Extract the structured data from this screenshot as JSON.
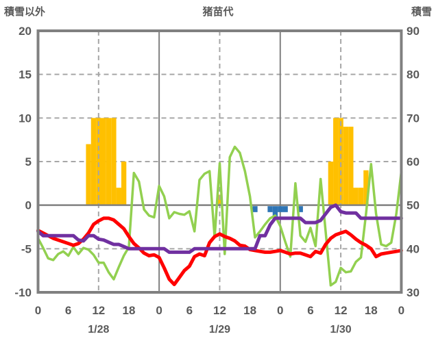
{
  "header": {
    "left_axis_title": "積雪以外",
    "chart_title": "猪苗代",
    "right_axis_title": "積雪"
  },
  "colors": {
    "background": "#ffffff",
    "frame_gray": "#808080",
    "grid_gray": "#a6a6a6",
    "zero_line_gray": "#808080",
    "text_gray": "#595959",
    "snowfall_bar_orange": "#ffc000",
    "precip_bar_blue": "#2e75b6",
    "green_line": "#92d050",
    "red_line": "#ff0000",
    "purple_line": "#7030a0"
  },
  "chart_data": {
    "type": "combo line+bar time series",
    "title": "猪苗代",
    "left_axis": {
      "title": "積雪以外",
      "min": -10,
      "max": 20,
      "ticks": [
        20,
        15,
        10,
        5,
        0,
        -5,
        -10
      ]
    },
    "right_axis": {
      "title": "積雪",
      "min": 30,
      "max": 90,
      "ticks": [
        90,
        80,
        70,
        60,
        50,
        40,
        30
      ]
    },
    "x_axis": {
      "hours_span": 72,
      "tick_hours": [
        0,
        6,
        12,
        18,
        24,
        30,
        36,
        42,
        48,
        54,
        60,
        66,
        72
      ],
      "tick_labels": [
        "0",
        "6",
        "12",
        "18",
        "0",
        "6",
        "12",
        "18",
        "0",
        "6",
        "12",
        "18",
        "0"
      ],
      "day_labels": [
        {
          "label": "1/28",
          "hour": 12
        },
        {
          "label": "1/29",
          "hour": 36
        },
        {
          "label": "1/30",
          "hour": 60
        }
      ],
      "dashed_gridline_hours": [
        12,
        36,
        60
      ],
      "solid_gridline_hours": [
        24,
        48
      ],
      "dashed_hgrid_values": [
        15,
        10,
        5,
        -5
      ],
      "grid": true,
      "legend": "none"
    },
    "series": [
      {
        "name": "snowfall-bars",
        "type": "bar",
        "axis": "left",
        "color_key": "snowfall_bar_orange",
        "points": [
          [
            10,
            7
          ],
          [
            11,
            10
          ],
          [
            12,
            10
          ],
          [
            13,
            10
          ],
          [
            14,
            10
          ],
          [
            15,
            10
          ],
          [
            16,
            2
          ],
          [
            17,
            5
          ],
          [
            36,
            1.2
          ],
          [
            58,
            5
          ],
          [
            59,
            10
          ],
          [
            60,
            10
          ],
          [
            61,
            9
          ],
          [
            62,
            9
          ],
          [
            63,
            2
          ],
          [
            64,
            2
          ],
          [
            65,
            4
          ]
        ]
      },
      {
        "name": "precip-marks",
        "type": "bar-down-from-zero",
        "axis": "left",
        "color_key": "precip_bar_blue",
        "points": [
          [
            43,
            0.8
          ],
          [
            46,
            0.8
          ],
          [
            47,
            1.7
          ],
          [
            48,
            0.8
          ],
          [
            49,
            0.8
          ],
          [
            52,
            0.8
          ]
        ]
      },
      {
        "name": "green-line",
        "type": "line",
        "axis": "left",
        "color_key": "green_line",
        "x_step_hours": 1,
        "values": [
          -3.8,
          -4.9,
          -6.1,
          -6.3,
          -5.6,
          -5.3,
          -5.8,
          -4.8,
          -5.6,
          -4.9,
          -5.1,
          -5.7,
          -6.6,
          -6.6,
          -7.7,
          -8.5,
          -7.1,
          -5.8,
          -4.8,
          3.7,
          2.7,
          -0.5,
          -1.2,
          -1.4,
          2.2,
          1.0,
          -1.5,
          -0.8,
          -1.0,
          -1.1,
          -0.7,
          -3.0,
          2.9,
          3.6,
          3.9,
          -3.7,
          4.8,
          -5.6,
          5.5,
          6.7,
          6.0,
          3.9,
          1.0,
          -3.7,
          -3.0,
          -2.2,
          -1.5,
          -1.2,
          -2.4,
          -4.2,
          -5.9,
          2.5,
          -3.5,
          -4.2,
          -2.6,
          -4.7,
          3.0,
          -3.0,
          -9.2,
          -8.8,
          -7.2,
          -7.7,
          -7.6,
          -6.5,
          -6.0,
          -1.0,
          4.7,
          -1.0,
          -4.5,
          -4.7,
          -4.3,
          -1.0,
          3.8
        ]
      },
      {
        "name": "red-temperature-line",
        "type": "line",
        "axis": "left",
        "color_key": "red_line",
        "x_step_hours": 1,
        "values": [
          -2.9,
          -3.2,
          -3.5,
          -3.8,
          -4.0,
          -4.2,
          -4.4,
          -4.6,
          -4.4,
          -3.9,
          -3.2,
          -2.2,
          -1.8,
          -1.5,
          -1.5,
          -1.7,
          -2.2,
          -2.7,
          -3.6,
          -4.4,
          -4.9,
          -5.5,
          -5.8,
          -5.7,
          -6.0,
          -7.2,
          -8.5,
          -9.1,
          -8.3,
          -7.5,
          -7.0,
          -5.9,
          -5.6,
          -5.8,
          -4.3,
          -3.6,
          -3.3,
          -3.6,
          -3.8,
          -4.1,
          -4.6,
          -4.7,
          -5.1,
          -5.2,
          -5.3,
          -5.4,
          -5.4,
          -5.3,
          -5.2,
          -5.4,
          -5.6,
          -5.5,
          -5.5,
          -5.7,
          -5.9,
          -5.3,
          -5.5,
          -4.5,
          -3.8,
          -3.4,
          -3.2,
          -3.0,
          -3.4,
          -3.9,
          -4.3,
          -4.6,
          -5.0,
          -5.9,
          -5.6,
          -5.5,
          -5.4,
          -5.3,
          -5.2
        ]
      },
      {
        "name": "purple-snow-depth-line",
        "type": "line",
        "axis": "right",
        "color_key": "purple_line",
        "x_step_hours": 1,
        "values": [
          44,
          43,
          43,
          43,
          43,
          43,
          43,
          43,
          42,
          41.8,
          43,
          43,
          42.2,
          42,
          41.5,
          41,
          41,
          40.5,
          40,
          40,
          40,
          40,
          40,
          40,
          40,
          40,
          39.2,
          39.2,
          39.2,
          39.2,
          39.2,
          40,
          40,
          40,
          40,
          40,
          40,
          40,
          40,
          40,
          40,
          40,
          40,
          40,
          43,
          43,
          45.5,
          47,
          47,
          47,
          47,
          47,
          47,
          46,
          46,
          46,
          46.5,
          48,
          49.5,
          50,
          48.5,
          48.2,
          48.2,
          48.2,
          47,
          47,
          47,
          47,
          47,
          47,
          47,
          47,
          47
        ]
      }
    ]
  }
}
